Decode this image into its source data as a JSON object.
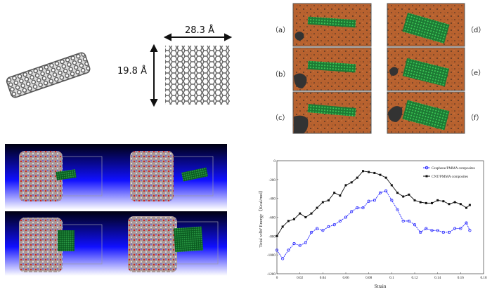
{
  "figure": {
    "dimensions": {
      "width_label": "28.3 Å",
      "height_label": "19.8 Å"
    },
    "panel_labels": [
      "（a）",
      "（b）",
      "（c）",
      "（d）",
      "（e）",
      "（f）"
    ],
    "colors": {
      "polymer": "#b5602e",
      "nanofiller": "#1f8a3a",
      "background_top": "#000010",
      "background_mid": "#1010ff"
    }
  },
  "chart_data": {
    "type": "line",
    "xlabel": "Strain",
    "ylabel": "Total vdW Energy（Kcal/mol）",
    "xlim": [
      0,
      0.18
    ],
    "ylim": [
      -1200,
      0
    ],
    "xticks": [
      "0",
      "0.02",
      "0.04",
      "0.06",
      "0.08",
      "0.1",
      "0.12",
      "0.14",
      "0.16",
      "0.18"
    ],
    "yticks": [
      "0",
      "-200",
      "-400",
      "-600",
      "-800",
      "-1000",
      "-1200"
    ],
    "grid": false,
    "legend": "top-right",
    "x": [
      0,
      0.005,
      0.01,
      0.015,
      0.02,
      0.025,
      0.03,
      0.035,
      0.04,
      0.045,
      0.05,
      0.055,
      0.06,
      0.065,
      0.07,
      0.075,
      0.08,
      0.085,
      0.09,
      0.095,
      0.1,
      0.105,
      0.11,
      0.115,
      0.12,
      0.125,
      0.13,
      0.135,
      0.14,
      0.145,
      0.15,
      0.155,
      0.16,
      0.165,
      0.168
    ],
    "series": [
      {
        "name": "Graphene/PMMA composites",
        "color": "#1a1aff",
        "style": "dashed-circle",
        "values": [
          -950,
          -1040,
          -950,
          -880,
          -900,
          -870,
          -760,
          -720,
          -740,
          -700,
          -680,
          -640,
          -600,
          -540,
          -500,
          -500,
          -430,
          -420,
          -340,
          -320,
          -420,
          -520,
          -640,
          -640,
          -680,
          -760,
          -720,
          -740,
          -740,
          -760,
          -760,
          -720,
          -720,
          -660,
          -740
        ]
      },
      {
        "name": "CNT/PMMA composites",
        "color": "#111111",
        "style": "solid-square",
        "values": [
          -800,
          -700,
          -640,
          -620,
          -560,
          -600,
          -560,
          -500,
          -440,
          -420,
          -340,
          -370,
          -260,
          -230,
          -180,
          -110,
          -120,
          -130,
          -150,
          -180,
          -260,
          -340,
          -380,
          -360,
          -420,
          -440,
          -450,
          -450,
          -420,
          -430,
          -460,
          -440,
          -460,
          -500,
          -470
        ]
      }
    ]
  }
}
